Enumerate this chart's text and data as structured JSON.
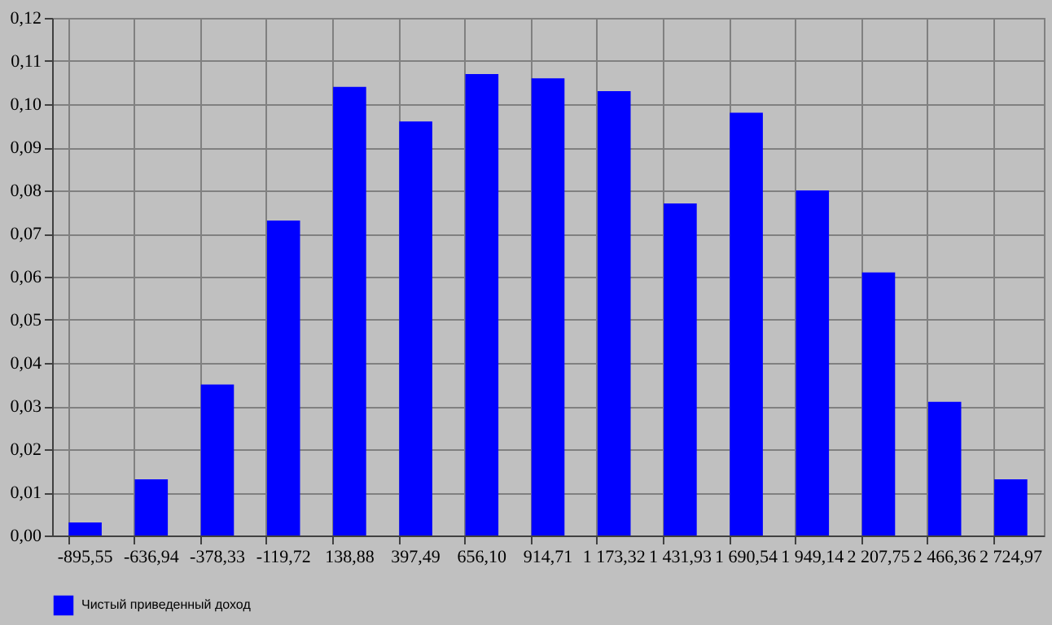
{
  "chart_data": {
    "type": "bar",
    "categories": [
      "-895,55",
      "-636,94",
      "-378,33",
      "-119,72",
      "138,88",
      "397,49",
      "656,10",
      "914,71",
      "1 173,32",
      "1 431,93",
      "1 690,54",
      "1 949,14",
      "2 207,75",
      "2 466,36",
      "2 724,97"
    ],
    "series": [
      {
        "name": "Чистый приведенный доход",
        "color": "#0000ff",
        "values": [
          0.003,
          0.013,
          0.035,
          0.073,
          0.104,
          0.096,
          0.107,
          0.106,
          0.103,
          0.077,
          0.098,
          0.08,
          0.061,
          0.031,
          0.013
        ]
      }
    ],
    "ylim": [
      0,
      0.12
    ],
    "yticks": [
      {
        "value": 0,
        "label": "0,00"
      },
      {
        "value": 0.01,
        "label": "0,01"
      },
      {
        "value": 0.02,
        "label": "0,02"
      },
      {
        "value": 0.03,
        "label": "0,03"
      },
      {
        "value": 0.04,
        "label": "0,04"
      },
      {
        "value": 0.05,
        "label": "0,05"
      },
      {
        "value": 0.06,
        "label": "0,06"
      },
      {
        "value": 0.07,
        "label": "0,07"
      },
      {
        "value": 0.08,
        "label": "0,08"
      },
      {
        "value": 0.09,
        "label": "0,09"
      },
      {
        "value": 0.1,
        "label": "0,10"
      },
      {
        "value": 0.11,
        "label": "0,11"
      },
      {
        "value": 0.12,
        "label": "0,12"
      }
    ],
    "grid": true,
    "legend": "bottom left"
  }
}
